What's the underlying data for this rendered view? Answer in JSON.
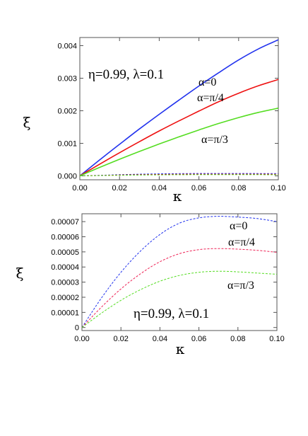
{
  "chart_data": [
    {
      "type": "line",
      "xlabel": "κ",
      "ylabel": "ξ",
      "xlim": [
        0,
        0.1
      ],
      "ylim": [
        -0.00012,
        0.00425
      ],
      "xticks": [
        "0.00",
        "0.02",
        "0.04",
        "0.06",
        "0.08",
        "0.10"
      ],
      "yticks": [
        "0.000",
        "0.001",
        "0.002",
        "0.003",
        "0.004"
      ],
      "param_label": "η=0.99, λ=0.1",
      "annotations": [
        "α=0",
        "α=π/4",
        "α=π/3"
      ],
      "x": [
        0,
        0.01,
        0.02,
        0.03,
        0.04,
        0.05,
        0.06,
        0.07,
        0.08,
        0.09,
        0.1
      ],
      "series": [
        {
          "color": "#2233ee",
          "dash": false,
          "values": [
            0,
            0.00049,
            0.00097,
            0.00144,
            0.00189,
            0.00233,
            0.00276,
            0.00317,
            0.00356,
            0.0039,
            0.00418
          ]
        },
        {
          "color": "#ee1111",
          "dash": false,
          "values": [
            0,
            0.00036,
            0.00071,
            0.00105,
            0.00138,
            0.00169,
            0.00199,
            0.00228,
            0.00254,
            0.00277,
            0.00296
          ]
        },
        {
          "color": "#55dd22",
          "dash": false,
          "values": [
            0,
            0.00026,
            0.00051,
            0.00075,
            0.00098,
            0.0012,
            0.00141,
            0.00161,
            0.00179,
            0.00195,
            0.00208
          ]
        },
        {
          "color": "#2233ee",
          "dash": true,
          "values": [
            0,
            1.8e-05,
            3.6e-05,
            5.1e-05,
            6.2e-05,
            6.9e-05,
            7.3e-05,
            7.4e-05,
            7.3e-05,
            7.2e-05,
            7e-05
          ]
        },
        {
          "color": "#ee1111",
          "dash": true,
          "values": [
            0,
            1.3e-05,
            2.6e-05,
            3.6e-05,
            4.4e-05,
            4.9e-05,
            5.2e-05,
            5.2e-05,
            5.2e-05,
            5.1e-05,
            5e-05
          ]
        },
        {
          "color": "#55dd22",
          "dash": true,
          "values": [
            0,
            9e-06,
            1.8e-05,
            2.6e-05,
            3.1e-05,
            3.5e-05,
            3.7e-05,
            3.7e-05,
            3.7e-05,
            3.6e-05,
            3.5e-05
          ]
        }
      ]
    },
    {
      "type": "line",
      "xlabel": "κ",
      "ylabel": "ξ",
      "xlim": [
        0,
        0.1
      ],
      "ylim": [
        -2e-06,
        7.52e-05
      ],
      "xticks": [
        "0.00",
        "0.02",
        "0.04",
        "0.06",
        "0.08",
        "0.10"
      ],
      "yticks": [
        "0",
        "0.00001",
        "0.00002",
        "0.00003",
        "0.00004",
        "0.00005",
        "0.00006",
        "0.00007"
      ],
      "param_label": "η=0.99, λ=0.1",
      "annotations": [
        "α=0",
        "α=π/4",
        "α=π/3"
      ],
      "x": [
        0,
        0.01,
        0.02,
        0.03,
        0.04,
        0.05,
        0.06,
        0.07,
        0.08,
        0.09,
        0.1
      ],
      "series": [
        {
          "color": "#2233ee",
          "dash": true,
          "values": [
            0,
            1.95e-05,
            3.65e-05,
            5.05e-05,
            6.15e-05,
            6.9e-05,
            7.25e-05,
            7.35e-05,
            7.3e-05,
            7.2e-05,
            7e-05
          ]
        },
        {
          "color": "#ee2255",
          "dash": true,
          "values": [
            0,
            1.35e-05,
            2.55e-05,
            3.55e-05,
            4.35e-05,
            4.88e-05,
            5.15e-05,
            5.22e-05,
            5.18e-05,
            5.1e-05,
            4.97e-05
          ]
        },
        {
          "color": "#55dd22",
          "dash": true,
          "values": [
            0,
            9.5e-06,
            1.8e-05,
            2.5e-05,
            3.06e-05,
            3.44e-05,
            3.65e-05,
            3.72e-05,
            3.68e-05,
            3.6e-05,
            3.52e-05
          ]
        }
      ]
    }
  ]
}
